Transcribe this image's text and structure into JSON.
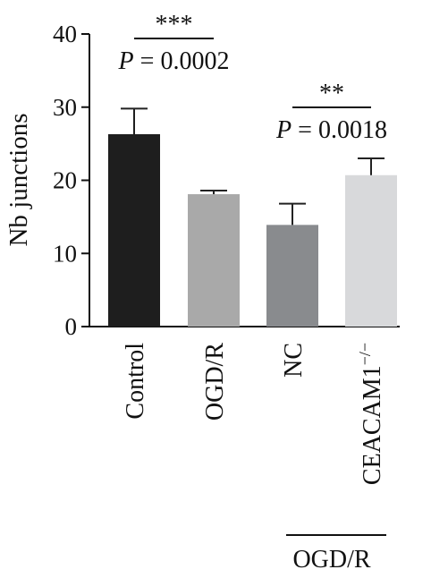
{
  "chart_data": {
    "type": "bar",
    "ylabel": "Nb junctions",
    "ylim": [
      0,
      40
    ],
    "yticks": [
      "0",
      "10",
      "20",
      "30",
      "40"
    ],
    "categories": [
      "Control",
      "OGD/R",
      "NC",
      "CEACAM1"
    ],
    "category_superscript": [
      "",
      "",
      "",
      "−/−"
    ],
    "values": [
      26.3,
      18.1,
      13.9,
      20.7
    ],
    "errors": [
      3.5,
      0.5,
      2.9,
      2.3
    ],
    "colors": [
      "#1e1e1e",
      "#a9a9a9",
      "#898b8e",
      "#d8d9db"
    ],
    "annotations": [
      {
        "stars": "***",
        "p_label": "P",
        "p_value": " = 0.0002",
        "from": 0,
        "to": 1
      },
      {
        "stars": "**",
        "p_label": "P",
        "p_value": " = 0.0018",
        "from": 2,
        "to": 3
      }
    ],
    "group_label": "OGD/R"
  }
}
